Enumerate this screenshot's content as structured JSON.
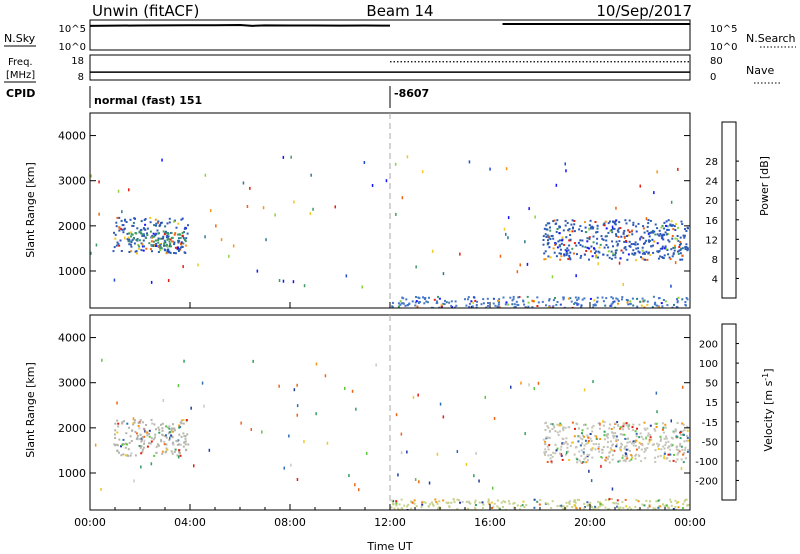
{
  "header": {
    "station": "Unwin (fitACF)",
    "beam": "Beam 14",
    "date": "10/Sep/2017"
  },
  "status_panels": {
    "nsky_label": "N.Sky",
    "nsearch_label": "N.Search",
    "freq_label_line1": "Freq.",
    "freq_label_line2": "[MHz]",
    "nave_label": "Nave",
    "cpid_label": "CPID",
    "noise_tick_hi": "10^5",
    "noise_tick_lo": "10^0",
    "freq_ticks": [
      "18",
      "8"
    ],
    "nave_ticks": [
      "80",
      "0"
    ],
    "cpid_segments": [
      {
        "start_hour": 0,
        "end_hour": 12,
        "text": "normal (fast) 151"
      },
      {
        "start_hour": 12,
        "end_hour": 24,
        "text": "-8607"
      }
    ],
    "nsky_series": [
      [
        0,
        4.6
      ],
      [
        1,
        4.65
      ],
      [
        2,
        4.7
      ],
      [
        3,
        4.72
      ],
      [
        4,
        4.75
      ],
      [
        5,
        4.73
      ],
      [
        6,
        4.78
      ],
      [
        6.5,
        4.62
      ],
      [
        7,
        4.72
      ],
      [
        8,
        4.7
      ],
      [
        9,
        4.68
      ],
      [
        10,
        4.66
      ],
      [
        11,
        4.68
      ],
      [
        12,
        4.66
      ]
    ],
    "nsky_series_late": [
      [
        16.5,
        5.0
      ],
      [
        24,
        5.0
      ]
    ],
    "freq_series": [
      [
        0,
        10.8
      ],
      [
        12,
        10.8
      ],
      [
        12,
        10.8
      ],
      [
        24,
        10.8
      ]
    ],
    "nave_series": [
      [
        12,
        62
      ],
      [
        24,
        62
      ]
    ]
  },
  "chart_data": [
    {
      "type": "heatmap",
      "title": "Power",
      "ylabel": "Slant Range [km]",
      "xlim": [
        0,
        24
      ],
      "ylim": [
        180,
        4500
      ],
      "yticks": [
        1000,
        2000,
        3000,
        4000
      ],
      "colorbar": {
        "label": "Power [dB]",
        "ticks": [
          "4",
          "8",
          "12",
          "16",
          "20",
          "24",
          "28"
        ],
        "colors": [
          "#1414ff",
          "#1e4bd2",
          "#2a7898",
          "#3c9a64",
          "#8cd23c",
          "#f0c81e",
          "#f59614",
          "#f0640f",
          "#e61e0f"
        ]
      },
      "regions": [
        {
          "x": [
            0.9,
            3.9
          ],
          "y": [
            1400,
            2200
          ],
          "color": "#2d5ab4"
        },
        {
          "x": [
            1.5,
            3.8
          ],
          "y": [
            1500,
            1900
          ],
          "color": "#3c9a64"
        },
        {
          "x": [
            18.1,
            23.9
          ],
          "y": [
            1250,
            2150
          ],
          "color": "#2d5ab4"
        },
        {
          "x": [
            12.0,
            23.9
          ],
          "y": [
            200,
            450
          ],
          "color": "#4678c8"
        }
      ]
    },
    {
      "type": "heatmap",
      "title": "Velocity",
      "ylabel": "Slant Range [km]",
      "xlabel": "Time UT",
      "xlim": [
        0,
        24
      ],
      "ylim": [
        180,
        4500
      ],
      "yticks": [
        1000,
        2000,
        3000,
        4000
      ],
      "xticks": [
        "00:00",
        "04:00",
        "08:00",
        "12:00",
        "16:00",
        "20:00",
        "00:00"
      ],
      "colorbar": {
        "label": "Velocity [m s^-1]",
        "ticks": [
          "200",
          "100",
          "50",
          "15",
          "-15",
          "-50",
          "-100",
          "-200"
        ],
        "colors": [
          "#1e3ca0",
          "#2d6eb4",
          "#32a064",
          "#5ac83c",
          "#c8c8c8",
          "#f0c81e",
          "#f59614",
          "#f06414",
          "#e61e0f"
        ]
      },
      "regions": [
        {
          "x": [
            0.9,
            3.9
          ],
          "y": [
            1400,
            2200
          ],
          "color": "#b4b4aa"
        },
        {
          "x": [
            18.1,
            23.9
          ],
          "y": [
            1250,
            2150
          ],
          "color": "#c3c3b9"
        },
        {
          "x": [
            12.0,
            23.9
          ],
          "y": [
            200,
            450
          ],
          "color": "#c8d28c"
        }
      ]
    }
  ]
}
